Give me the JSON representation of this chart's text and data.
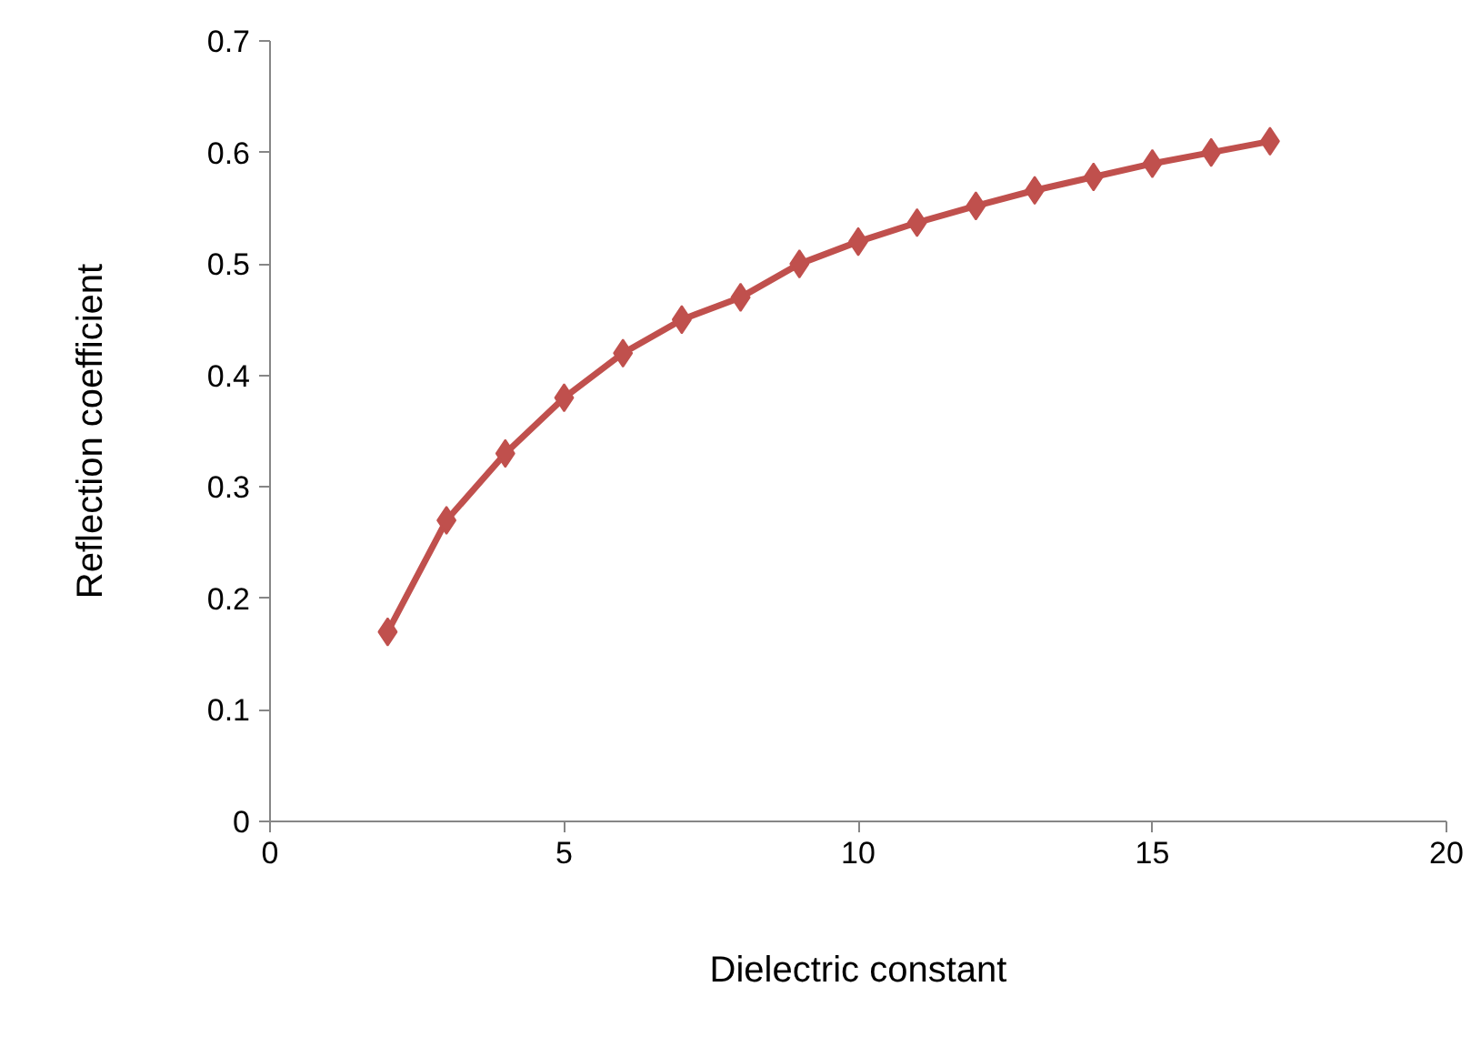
{
  "chart_data": {
    "type": "line",
    "xlabel": "Dielectric constant",
    "ylabel": "Reflection coefficient",
    "x": [
      2,
      3,
      4,
      5,
      6,
      7,
      8,
      9,
      10,
      11,
      12,
      13,
      14,
      15,
      16,
      17
    ],
    "series": [
      {
        "color": "#c0504d",
        "values": [
          0.17,
          0.27,
          0.33,
          0.38,
          0.42,
          0.45,
          0.47,
          0.5,
          0.52,
          0.537,
          0.552,
          0.566,
          0.578,
          0.59,
          0.6,
          0.61
        ]
      }
    ],
    "xlim": [
      0,
      20
    ],
    "xticks": [
      0,
      5,
      10,
      15,
      20
    ],
    "ylim": [
      0,
      0.7
    ],
    "yticks": [
      0,
      0.1,
      0.2,
      0.3,
      0.4,
      0.5,
      0.6,
      0.7
    ],
    "grid": false,
    "marker": "diamond",
    "line_style": "solid"
  }
}
